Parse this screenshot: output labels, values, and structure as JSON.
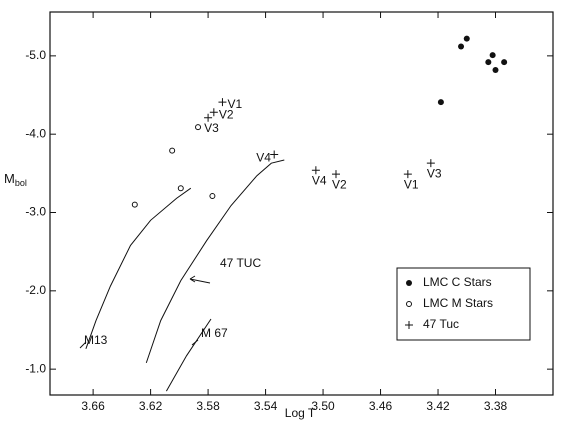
{
  "chart_data": {
    "type": "scatter",
    "xlabel": "Log T",
    "ylabel": {
      "main": "M",
      "sub": "bol"
    },
    "xlim": [
      3.69,
      3.34
    ],
    "ylim": [
      -0.67,
      -5.56
    ],
    "xticks": [
      3.66,
      3.62,
      3.58,
      3.54,
      {
        "value": 3.5,
        "label": "3.50"
      },
      3.46,
      3.42,
      3.38
    ],
    "yticks": [
      {
        "value": -5,
        "label": "-5.0"
      },
      {
        "value": -4,
        "label": "-4.0"
      },
      {
        "value": -3,
        "label": "-3.0"
      },
      {
        "value": -2,
        "label": "-2.0"
      },
      {
        "value": -1,
        "label": "-1.0"
      }
    ],
    "legend": "lower right",
    "color": "#111111",
    "series": [
      {
        "name": "LMC  C  Stars",
        "marker": "filled",
        "x": [
          3.4,
          3.404,
          3.382,
          3.385,
          3.374,
          3.38,
          3.418
        ],
        "y": [
          -5.22,
          -5.12,
          -5.01,
          -4.92,
          -4.92,
          -4.82,
          -4.41
        ]
      },
      {
        "name": "LMC  M  Stars",
        "marker": "open",
        "x": [
          3.587,
          3.605,
          3.599,
          3.631,
          3.577
        ],
        "y": [
          -4.09,
          -3.79,
          -3.31,
          -3.1,
          -3.21
        ]
      },
      {
        "name": "47  Tuc",
        "marker": "plus",
        "x": [
          3.57,
          3.576,
          3.58,
          3.534,
          3.505,
          3.491,
          3.441,
          3.425
        ],
        "y": [
          -4.41,
          -4.28,
          -4.21,
          -3.74,
          -3.54,
          -3.49,
          -3.49,
          -3.63
        ],
        "labels": [
          "V1",
          "V2",
          "V3",
          "V4",
          "V4",
          "V2",
          "V1",
          "V3"
        ]
      }
    ],
    "curves": [
      {
        "label": "M13",
        "x": [
          3.665,
          3.658,
          3.648,
          3.634,
          3.62,
          3.602,
          3.592
        ],
        "y": [
          -1.26,
          -1.62,
          -2.06,
          -2.58,
          -2.9,
          -3.18,
          -3.31
        ]
      },
      {
        "label": "47 TUC",
        "x": [
          3.623,
          3.613,
          3.599,
          3.581,
          3.564,
          3.546,
          3.536,
          3.527
        ],
        "y": [
          -1.08,
          -1.62,
          -2.13,
          -2.64,
          -3.09,
          -3.47,
          -3.63,
          -3.67
        ]
      },
      {
        "label": "M 67",
        "x": [
          3.609,
          3.595,
          3.578
        ],
        "y": [
          -0.72,
          -1.17,
          -1.64
        ]
      }
    ]
  }
}
